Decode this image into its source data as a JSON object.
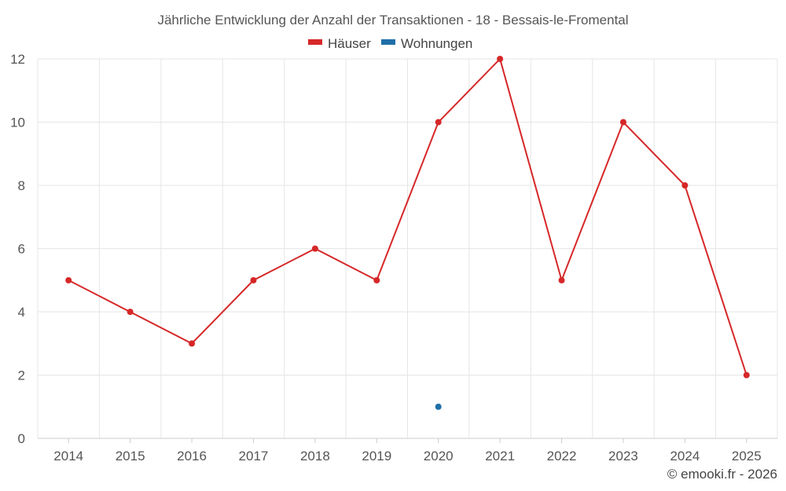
{
  "chart_data": {
    "type": "line",
    "title": "Jährliche Entwicklung der Anzahl der Transaktionen - 18 - Bessais-le-Fromental",
    "categories": [
      "2014",
      "2015",
      "2016",
      "2017",
      "2018",
      "2019",
      "2020",
      "2021",
      "2022",
      "2023",
      "2024",
      "2025"
    ],
    "series": [
      {
        "name": "Häuser",
        "color": "#d62728",
        "values": [
          5,
          4,
          3,
          5,
          6,
          5,
          10,
          12,
          5,
          10,
          8,
          2
        ]
      },
      {
        "name": "Wohnungen",
        "color": "#1f6fa8",
        "values": [
          null,
          null,
          null,
          null,
          null,
          null,
          1,
          null,
          null,
          null,
          null,
          null
        ]
      }
    ],
    "ylim": [
      0,
      12
    ],
    "yticks": [
      0,
      2,
      4,
      6,
      8,
      10,
      12
    ],
    "xlabel": "",
    "ylabel": "",
    "grid": true,
    "legend_position": "top-center"
  },
  "credit": "© emooki.fr - 2026"
}
